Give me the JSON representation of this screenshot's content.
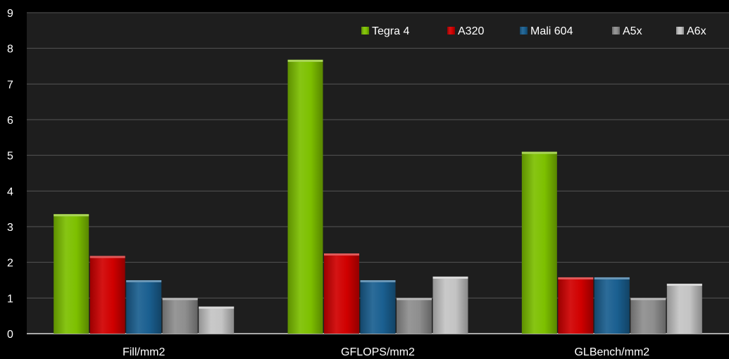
{
  "chart_data": {
    "type": "bar",
    "categories": [
      "Fill/mm2",
      "GFLOPS/mm2",
      "GLBench/mm2"
    ],
    "series": [
      {
        "name": "Tegra 4",
        "values": [
          3.35,
          7.68,
          5.1
        ],
        "color": "#7dc000"
      },
      {
        "name": "A320",
        "values": [
          2.18,
          2.25,
          1.58
        ],
        "color": "#d00000"
      },
      {
        "name": "Mali 604",
        "values": [
          1.5,
          1.5,
          1.58
        ],
        "color": "#1a5f90"
      },
      {
        "name": "A5x",
        "values": [
          1.0,
          1.0,
          1.0
        ],
        "color": "#8e8e8e"
      },
      {
        "name": "A6x",
        "values": [
          0.76,
          1.6,
          1.4
        ],
        "color": "#c4c4c4"
      }
    ],
    "ylim": [
      0,
      9
    ],
    "yticks": [
      "0",
      "1",
      "2",
      "3",
      "4",
      "5",
      "6",
      "7",
      "8",
      "9"
    ],
    "grid": true,
    "legend_position": "top-right",
    "background": "#000000",
    "plot_background": "#1e1e1e",
    "grid_color": "#555555"
  }
}
